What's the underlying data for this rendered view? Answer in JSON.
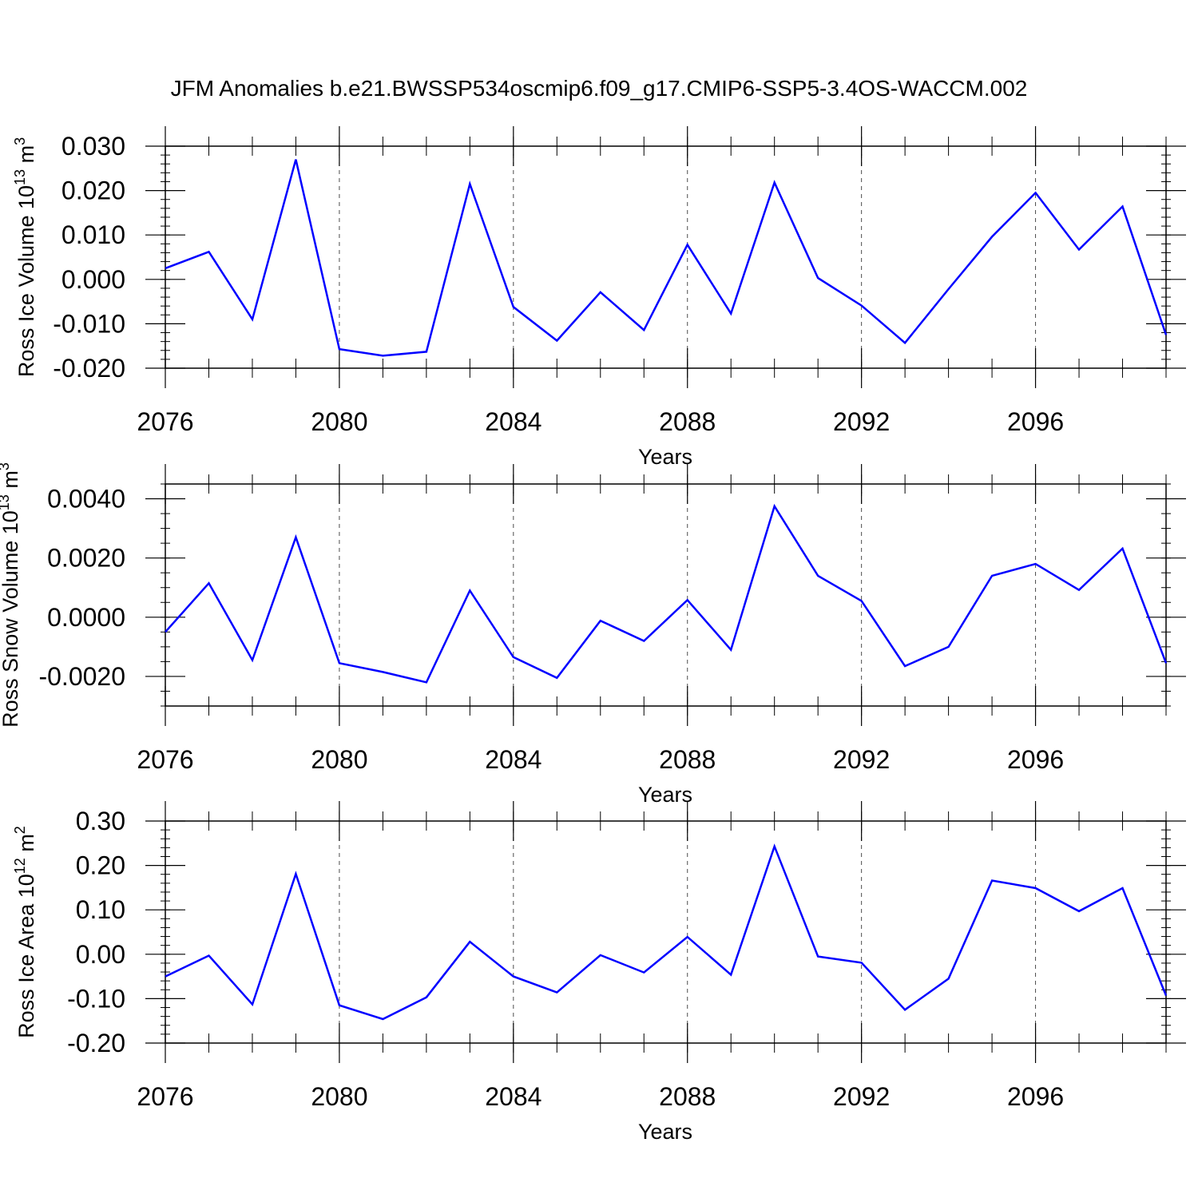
{
  "title": "JFM Anomalies b.e21.BWSSP534oscmip6.f09_g17.CMIP6-SSP5-3.4OS-WACCM.002",
  "colors": {
    "line": "#0000ff",
    "axis": "#000000",
    "grid": "#000000"
  },
  "chart_data": [
    {
      "type": "line",
      "ylabel": "Ross Ice Volume 10",
      "ylabel_exp": "13",
      "ylabel_unit": " m",
      "ylabel_unit_exp": "3",
      "xlabel": "Years",
      "xlim": [
        2076,
        2099
      ],
      "ylim": [
        -0.02,
        0.03
      ],
      "yticks": [
        -0.02,
        -0.01,
        0.0,
        0.01,
        0.02,
        0.03
      ],
      "ytick_labels": [
        "-0.020",
        "-0.010",
        "0.000",
        "0.010",
        "0.020",
        "0.030"
      ],
      "yminor_step": 0.002,
      "xticks": [
        2076,
        2080,
        2084,
        2088,
        2092,
        2096
      ],
      "xtick_labels": [
        "2076",
        "2080",
        "2084",
        "2088",
        "2092",
        "2096"
      ],
      "x": [
        2076,
        2077,
        2078,
        2079,
        2080,
        2081,
        2082,
        2083,
        2084,
        2085,
        2086,
        2087,
        2088,
        2089,
        2090,
        2091,
        2092,
        2093,
        2094,
        2095,
        2096,
        2097,
        2098,
        2099
      ],
      "series": [
        {
          "name": "Ross Ice Volume",
          "values": [
            0.0025,
            0.0062,
            -0.009,
            0.027,
            -0.0157,
            -0.0172,
            -0.0163,
            0.0215,
            -0.0062,
            -0.0138,
            -0.0029,
            -0.0114,
            0.0078,
            -0.0077,
            0.0218,
            0.0003,
            -0.0059,
            -0.0143,
            -0.0022,
            0.0096,
            0.0195,
            0.0067,
            0.0164,
            -0.0125
          ]
        }
      ]
    },
    {
      "type": "line",
      "ylabel": "Ross Snow Volume 10",
      "ylabel_exp": "13",
      "ylabel_unit": " m",
      "ylabel_unit_exp": "3",
      "xlabel": "Years",
      "xlim": [
        2076,
        2099
      ],
      "ylim": [
        -0.003,
        0.0045
      ],
      "yticks": [
        -0.002,
        0.0,
        0.002,
        0.004
      ],
      "ytick_labels": [
        "-0.0020",
        "0.0000",
        "0.0020",
        "0.0040"
      ],
      "yminor_step": 0.0005,
      "xticks": [
        2076,
        2080,
        2084,
        2088,
        2092,
        2096
      ],
      "xtick_labels": [
        "2076",
        "2080",
        "2084",
        "2088",
        "2092",
        "2096"
      ],
      "x": [
        2076,
        2077,
        2078,
        2079,
        2080,
        2081,
        2082,
        2083,
        2084,
        2085,
        2086,
        2087,
        2088,
        2089,
        2090,
        2091,
        2092,
        2093,
        2094,
        2095,
        2096,
        2097,
        2098,
        2099
      ],
      "series": [
        {
          "name": "Ross Snow Volume",
          "values": [
            -0.0005,
            0.00115,
            -0.00145,
            0.0027,
            -0.00155,
            -0.00185,
            -0.0022,
            0.0009,
            -0.00135,
            -0.00205,
            -0.00012,
            -0.0008,
            0.00058,
            -0.0011,
            0.00375,
            0.0014,
            0.00055,
            -0.00165,
            -0.001,
            0.0014,
            0.0018,
            0.00092,
            0.00232,
            -0.00155
          ]
        }
      ]
    },
    {
      "type": "line",
      "ylabel": "Ross Ice Area 10",
      "ylabel_exp": "12",
      "ylabel_unit": " m",
      "ylabel_unit_exp": "2",
      "xlabel": "Years",
      "xlim": [
        2076,
        2099
      ],
      "ylim": [
        -0.2,
        0.3
      ],
      "yticks": [
        -0.2,
        -0.1,
        0.0,
        0.1,
        0.2,
        0.3
      ],
      "ytick_labels": [
        "-0.20",
        "-0.10",
        "0.00",
        "0.10",
        "0.20",
        "0.30"
      ],
      "yminor_step": 0.02,
      "xticks": [
        2076,
        2080,
        2084,
        2088,
        2092,
        2096
      ],
      "xtick_labels": [
        "2076",
        "2080",
        "2084",
        "2088",
        "2092",
        "2096"
      ],
      "x": [
        2076,
        2077,
        2078,
        2079,
        2080,
        2081,
        2082,
        2083,
        2084,
        2085,
        2086,
        2087,
        2088,
        2089,
        2090,
        2091,
        2092,
        2093,
        2094,
        2095,
        2096,
        2097,
        2098,
        2099
      ],
      "series": [
        {
          "name": "Ross Ice Area",
          "values": [
            -0.05,
            -0.003,
            -0.113,
            0.181,
            -0.115,
            -0.146,
            -0.097,
            0.028,
            -0.05,
            -0.086,
            -0.002,
            -0.041,
            0.039,
            -0.046,
            0.243,
            -0.005,
            -0.019,
            -0.125,
            -0.055,
            0.166,
            0.149,
            0.097,
            0.149,
            -0.093
          ]
        }
      ]
    }
  ]
}
